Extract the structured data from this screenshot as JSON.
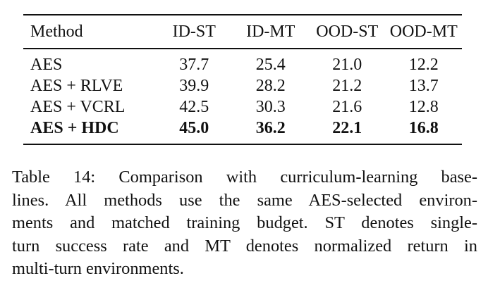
{
  "table": {
    "columns": [
      "Method",
      "ID-ST",
      "ID-MT",
      "OOD-ST",
      "OOD-MT"
    ],
    "rows": [
      {
        "method": "AES",
        "values": [
          "37.7",
          "25.4",
          "21.0",
          "12.2"
        ],
        "bold": false
      },
      {
        "method": "AES + RLVE",
        "values": [
          "39.9",
          "28.2",
          "21.2",
          "13.7"
        ],
        "bold": false
      },
      {
        "method": "AES + VCRL",
        "values": [
          "42.5",
          "30.3",
          "21.6",
          "12.8"
        ],
        "bold": false
      },
      {
        "method": "AES + HDC",
        "values": [
          "45.0",
          "36.2",
          "22.1",
          "16.8"
        ],
        "bold": true
      }
    ]
  },
  "caption": {
    "lines": [
      "Table 14: Comparison with curriculum-learning base-",
      "lines. All methods use the same AES-selected environ-",
      "ments and matched training budget. ST denotes single-",
      "turn success rate and MT denotes normalized return in",
      "multi-turn environments."
    ]
  }
}
